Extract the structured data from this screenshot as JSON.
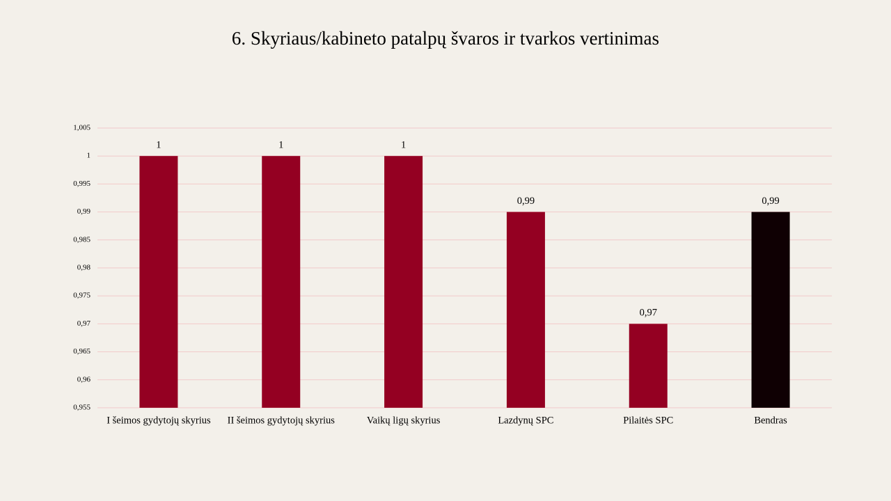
{
  "chart_data": {
    "type": "bar",
    "title": "6. Skyriaus/kabineto patalpų švaros ir tvarkos vertinimas",
    "categories": [
      "I šeimos gydytojų skyrius",
      "II šeimos gydytojų skyrius",
      "Vaikų ligų skyrius",
      "Lazdynų SPC",
      "Pilaitės SPC",
      "Bendras"
    ],
    "values": [
      1,
      1,
      1,
      0.99,
      0.97,
      0.99
    ],
    "value_labels": [
      "1",
      "1",
      "1",
      "0,99",
      "0,97",
      "0,99"
    ],
    "colors": [
      "#940022",
      "#940022",
      "#940022",
      "#940022",
      "#940022",
      "#0f0003"
    ],
    "ylim": [
      0.955,
      1.005
    ],
    "yticks": [
      {
        "value": 0.955,
        "label": "0,955"
      },
      {
        "value": 0.96,
        "label": "0,96"
      },
      {
        "value": 0.965,
        "label": "0,965"
      },
      {
        "value": 0.97,
        "label": "0,97"
      },
      {
        "value": 0.975,
        "label": "0,975"
      },
      {
        "value": 0.98,
        "label": "0,98"
      },
      {
        "value": 0.985,
        "label": "0,985"
      },
      {
        "value": 0.99,
        "label": "0,99"
      },
      {
        "value": 0.995,
        "label": "0,995"
      },
      1,
      {
        "value": 1.005,
        "label": "1,005"
      }
    ],
    "grid": true
  }
}
